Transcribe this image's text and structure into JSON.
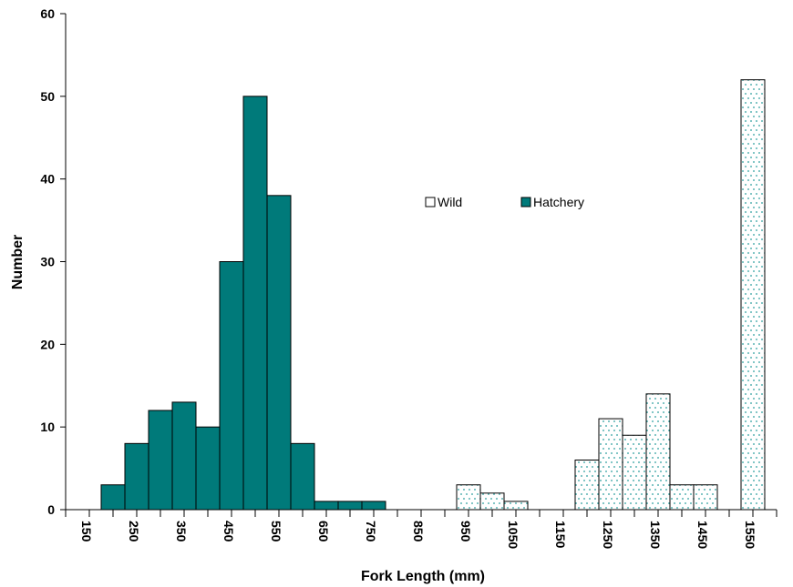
{
  "chart_data": {
    "type": "bar",
    "xlabel": "Fork Length (mm)",
    "ylabel": "Number",
    "ylim": [
      0,
      60
    ],
    "yticks": [
      0,
      10,
      20,
      30,
      40,
      50,
      60
    ],
    "bin_width": 50,
    "x_range": [
      150,
      1650
    ],
    "xtick_labels": [
      "150",
      "250",
      "350",
      "450",
      "550",
      "650",
      "750",
      "850",
      "950",
      "1050",
      "1150",
      "1250",
      "1350",
      "1450",
      "1550"
    ],
    "legend": {
      "placement": "center-right"
    },
    "series": [
      {
        "name": "Wild",
        "color": "#2a9d9d",
        "pattern": "dotted",
        "bins": [
          {
            "x": 1000,
            "value": 3
          },
          {
            "x": 1050,
            "value": 2
          },
          {
            "x": 1100,
            "value": 1
          },
          {
            "x": 1250,
            "value": 6
          },
          {
            "x": 1300,
            "value": 11
          },
          {
            "x": 1350,
            "value": 9
          },
          {
            "x": 1400,
            "value": 14
          },
          {
            "x": 1450,
            "value": 3
          },
          {
            "x": 1500,
            "value": 3
          },
          {
            "x": 1600,
            "value": 52
          }
        ]
      },
      {
        "name": "Hatchery",
        "color": "#007a7a",
        "pattern": "solid",
        "bins": [
          {
            "x": 250,
            "value": 3
          },
          {
            "x": 300,
            "value": 8
          },
          {
            "x": 350,
            "value": 12
          },
          {
            "x": 400,
            "value": 13
          },
          {
            "x": 450,
            "value": 10
          },
          {
            "x": 500,
            "value": 30
          },
          {
            "x": 550,
            "value": 50
          },
          {
            "x": 600,
            "value": 38
          },
          {
            "x": 650,
            "value": 8
          },
          {
            "x": 700,
            "value": 1
          },
          {
            "x": 750,
            "value": 1
          },
          {
            "x": 800,
            "value": 1
          }
        ]
      }
    ]
  }
}
